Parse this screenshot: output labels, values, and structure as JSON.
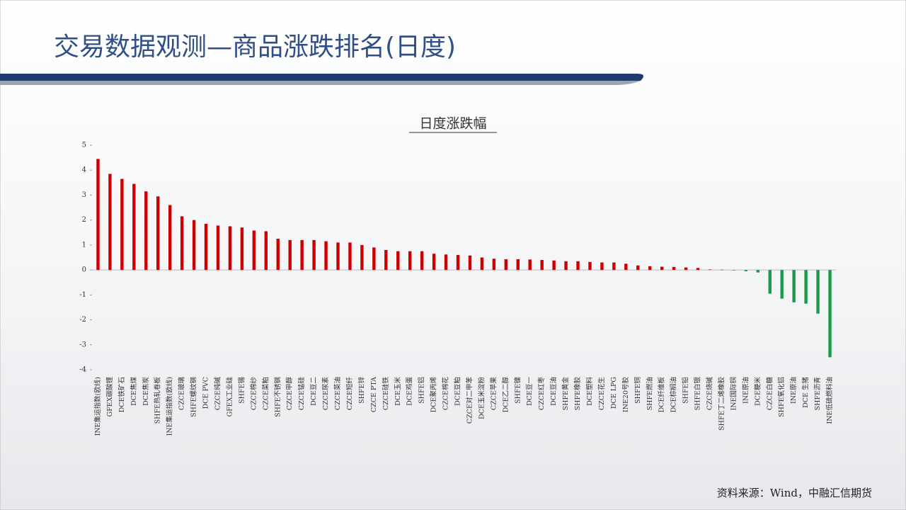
{
  "slide": {
    "title": "交易数据观测—商品涨跌排名(日度)",
    "source": "资料来源：Wind，中融汇信期货"
  },
  "chart_data": {
    "type": "bar",
    "title": "日度涨跌幅",
    "categories": [
      "INE集运指数(欧线)",
      "GFEX碳酸锂",
      "DCE铁矿石",
      "DCE焦煤",
      "DCE焦炭",
      "SHFE热轧卷板",
      "INE集运指数(欧线)",
      "CZCE玻璃",
      "SHFE螺纹钢",
      "DCE PVC",
      "CZCE纯碱",
      "GFEX工业硅",
      "SHFE锡",
      "CZCE棉纱",
      "CZCE菜粕",
      "SHFE不锈钢",
      "CZCE甲醇",
      "CZCE锰硅",
      "DCE豆二",
      "CZCE尿素",
      "CZCE菜油",
      "CZCE短纤",
      "SHFE锌",
      "CZCE PTA",
      "CZCE硅铁",
      "DCE玉米",
      "DCE鸡蛋",
      "SHFE铝",
      "DCE聚丙烯",
      "CZCE棉花",
      "DCE豆粕",
      "CZCE对二甲苯",
      "DCE玉米淀粉",
      "CZCE苹果",
      "DCE乙二醇",
      "SHFE镍",
      "DCE豆一",
      "CZCE红枣",
      "DCE豆油",
      "SHFE黄金",
      "SHFE橡胶",
      "DCE塑料",
      "CZCE花生",
      "DCE LPG",
      "INE20号胶",
      "SHFE铜",
      "SHFE燃油",
      "DCE纤维板",
      "DCE棕榈油",
      "SHFE铅",
      "SHFE白银",
      "CZCE烧碱",
      "SHFE丁二烯橡胶",
      "INE国际铜",
      "INE原油",
      "DCE粳米",
      "CZCE白糖",
      "SHFE氧化铝",
      "INE原油",
      "DCE 生猪",
      "SHFE沥青",
      "INE低硫燃料油"
    ],
    "values": [
      4.45,
      3.85,
      3.65,
      3.45,
      3.15,
      2.95,
      2.6,
      2.15,
      2.0,
      1.85,
      1.78,
      1.75,
      1.7,
      1.58,
      1.55,
      1.25,
      1.2,
      1.2,
      1.2,
      1.15,
      1.1,
      1.1,
      1.0,
      0.9,
      0.8,
      0.75,
      0.75,
      0.75,
      0.65,
      0.62,
      0.6,
      0.58,
      0.5,
      0.45,
      0.43,
      0.43,
      0.42,
      0.4,
      0.38,
      0.35,
      0.35,
      0.32,
      0.3,
      0.3,
      0.25,
      0.18,
      0.15,
      0.13,
      0.12,
      0.1,
      0.08,
      0.02,
      0.01,
      0.0,
      -0.05,
      -0.1,
      -0.95,
      -1.15,
      -1.3,
      -1.35,
      -1.75,
      -3.5
    ],
    "color": "#cc0000",
    "negative_color": "#1a9a4a",
    "ylim": [
      -4,
      5
    ],
    "yticks": [
      -4,
      -3,
      -2,
      -1,
      0,
      1,
      2,
      3,
      4,
      5
    ]
  }
}
